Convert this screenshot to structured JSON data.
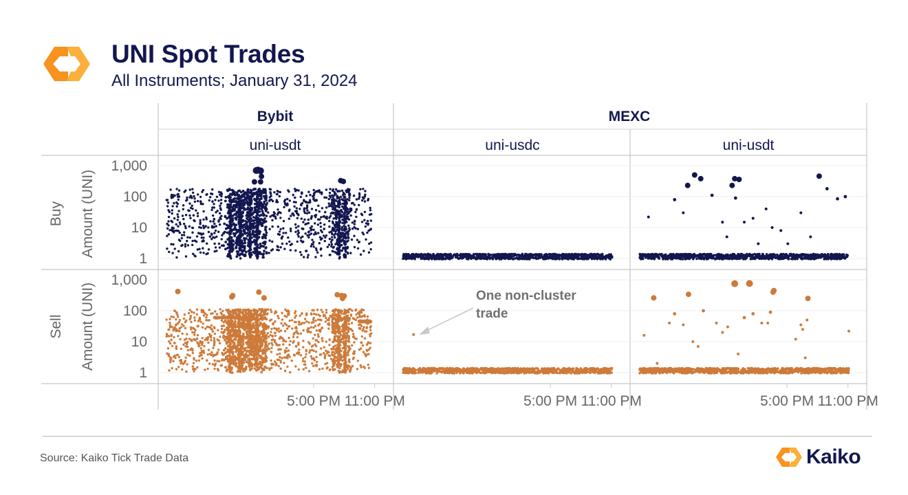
{
  "header": {
    "title": "UNI Spot Trades",
    "subtitle": "All Instruments; January 31, 2024"
  },
  "footer": {
    "source": "Source: Kaiko Tick Trade Data",
    "brand": "Kaiko"
  },
  "colors": {
    "buy": "#13174f",
    "sell": "#cd7a3a",
    "text": "#13174f",
    "axis_text": "#666666",
    "logo_orange": "#f7931e",
    "logo_yellow": "#fbb03b"
  },
  "chart_data": {
    "type": "scatter",
    "y_scale": "log",
    "y_ticks": [
      "1,000",
      "100",
      "10",
      "1"
    ],
    "y_tick_values": [
      1000,
      100,
      10,
      1
    ],
    "x_ticks": [
      "5:00 PM",
      "11:00 PM"
    ],
    "grid": true,
    "y_axis_label": "Amount (UNI)",
    "row_labels": [
      "Buy",
      "Sell"
    ],
    "exchanges": [
      {
        "name": "Bybit",
        "instruments": [
          "uni-usdt"
        ]
      },
      {
        "name": "MEXC",
        "instruments": [
          "uni-usdc",
          "uni-usdt"
        ]
      }
    ],
    "annotation": {
      "text_line1": "One non-cluster",
      "text_line2": "trade",
      "panel": "MEXC uni-usdc Sell",
      "x_hour": 1.2,
      "amount": 17
    },
    "panels": [
      {
        "exchange": "Bybit",
        "instrument": "uni-usdt",
        "side": "Buy",
        "pattern": "dense scatter 1–200 UNI",
        "large_trades": [
          [
            10.3,
            700
          ],
          [
            10.5,
            720
          ],
          [
            10.8,
            680
          ],
          [
            10.9,
            450
          ],
          [
            10.8,
            300
          ],
          [
            10.1,
            300
          ],
          [
            20.0,
            330
          ],
          [
            20.3,
            310
          ]
        ]
      },
      {
        "exchange": "MEXC",
        "instrument": "uni-usdc",
        "side": "Buy",
        "pattern": "cluster near 1 UNI",
        "large_trades": []
      },
      {
        "exchange": "MEXC",
        "instrument": "uni-usdt",
        "side": "Buy",
        "pattern": "cluster near 1 UNI with sparse outliers",
        "large_trades": [
          [
            6.3,
            500
          ],
          [
            5.5,
            230
          ],
          [
            7.0,
            380
          ],
          [
            10.6,
            230
          ],
          [
            10.9,
            380
          ],
          [
            11.4,
            360
          ],
          [
            20.6,
            460
          ],
          [
            1.0,
            22
          ],
          [
            4.0,
            80
          ],
          [
            5.0,
            30
          ],
          [
            8.3,
            110
          ],
          [
            11.0,
            90
          ],
          [
            10.0,
            5
          ],
          [
            13.0,
            20
          ],
          [
            14.5,
            40
          ],
          [
            15.2,
            10
          ],
          [
            17.0,
            3
          ],
          [
            18.5,
            30
          ],
          [
            19.6,
            5
          ],
          [
            21.5,
            180
          ],
          [
            22.7,
            85
          ],
          [
            23.6,
            100
          ],
          [
            12.0,
            15
          ],
          [
            9.5,
            15
          ],
          [
            13.6,
            3
          ],
          [
            16.2,
            8
          ]
        ]
      },
      {
        "exchange": "Bybit",
        "instrument": "uni-usdt",
        "side": "Sell",
        "pattern": "dense scatter 1–100 UNI",
        "large_trades": [
          [
            1.3,
            420
          ],
          [
            7.5,
            280
          ],
          [
            7.6,
            310
          ],
          [
            10.6,
            400
          ],
          [
            11.2,
            260
          ],
          [
            19.6,
            330
          ],
          [
            20.1,
            310
          ],
          [
            20.4,
            300
          ],
          [
            20.2,
            250
          ]
        ]
      },
      {
        "exchange": "MEXC",
        "instrument": "uni-usdc",
        "side": "Sell",
        "pattern": "cluster near 1 UNI",
        "large_trades": [
          [
            1.2,
            17
          ]
        ]
      },
      {
        "exchange": "MEXC",
        "instrument": "uni-usdt",
        "side": "Sell",
        "pattern": "cluster near 1 UNI with sparse outliers",
        "large_trades": [
          [
            10.9,
            750
          ],
          [
            12.6,
            760
          ],
          [
            15.4,
            450
          ],
          [
            15.3,
            400
          ],
          [
            1.6,
            260
          ],
          [
            5.6,
            340
          ],
          [
            19.3,
            250
          ],
          [
            0.5,
            16
          ],
          [
            2.0,
            2
          ],
          [
            3.4,
            40
          ],
          [
            4.0,
            80
          ],
          [
            5.0,
            35
          ],
          [
            6.1,
            10
          ],
          [
            6.7,
            7
          ],
          [
            7.3,
            100
          ],
          [
            8.8,
            40
          ],
          [
            9.5,
            20
          ],
          [
            10.1,
            30
          ],
          [
            12.0,
            60
          ],
          [
            13.0,
            80
          ],
          [
            14.0,
            40
          ],
          [
            15.0,
            90
          ],
          [
            18.5,
            35
          ],
          [
            18.7,
            25
          ],
          [
            19.0,
            3
          ],
          [
            19.2,
            50
          ],
          [
            24.0,
            22
          ],
          [
            11.3,
            4
          ],
          [
            17.9,
            12
          ],
          [
            14.7,
            40
          ]
        ]
      }
    ]
  }
}
